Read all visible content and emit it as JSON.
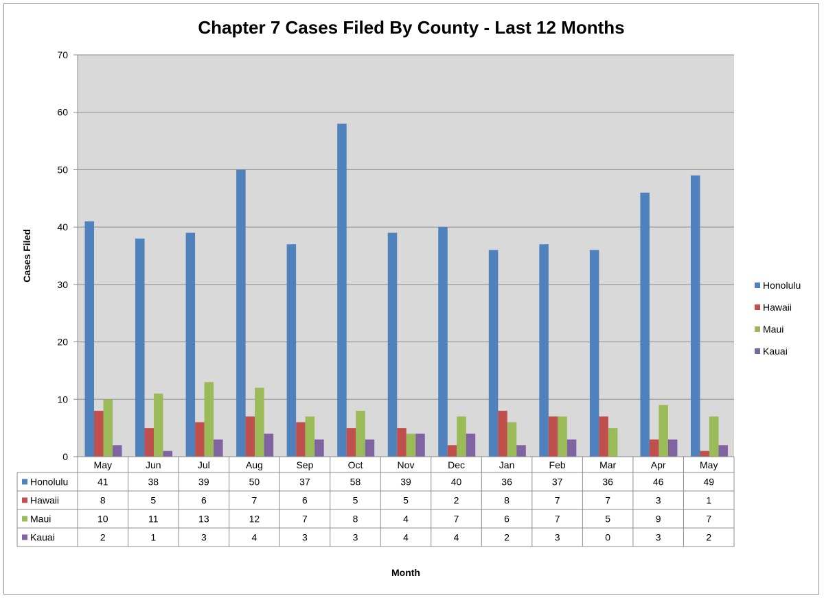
{
  "chart_data": {
    "type": "bar",
    "title": "Chapter 7 Cases Filed By County - Last 12 Months",
    "xlabel": "Month",
    "ylabel": "Cases Filed",
    "ylim": [
      0,
      70
    ],
    "yticks": [
      0,
      10,
      20,
      30,
      40,
      50,
      60,
      70
    ],
    "grid": true,
    "legend_position": "right",
    "data_table": true,
    "categories": [
      "May",
      "Jun",
      "Jul",
      "Aug",
      "Sep",
      "Oct",
      "Nov",
      "Dec",
      "Jan",
      "Feb",
      "Mar",
      "Apr",
      "May"
    ],
    "series": [
      {
        "name": "Honolulu",
        "color": "#4f81bd",
        "values": [
          41,
          38,
          39,
          50,
          37,
          58,
          39,
          40,
          36,
          37,
          36,
          46,
          49
        ]
      },
      {
        "name": "Hawaii",
        "color": "#c0504d",
        "values": [
          8,
          5,
          6,
          7,
          6,
          5,
          5,
          2,
          8,
          7,
          7,
          3,
          1
        ]
      },
      {
        "name": "Maui",
        "color": "#9bbb59",
        "values": [
          10,
          11,
          13,
          12,
          7,
          8,
          4,
          7,
          6,
          7,
          5,
          9,
          7
        ]
      },
      {
        "name": "Kauai",
        "color": "#8064a2",
        "values": [
          2,
          1,
          3,
          4,
          3,
          3,
          4,
          4,
          2,
          3,
          0,
          3,
          2
        ]
      }
    ],
    "plot_background": "#d9d9d9",
    "gridline_color": "#8c8c8c"
  }
}
